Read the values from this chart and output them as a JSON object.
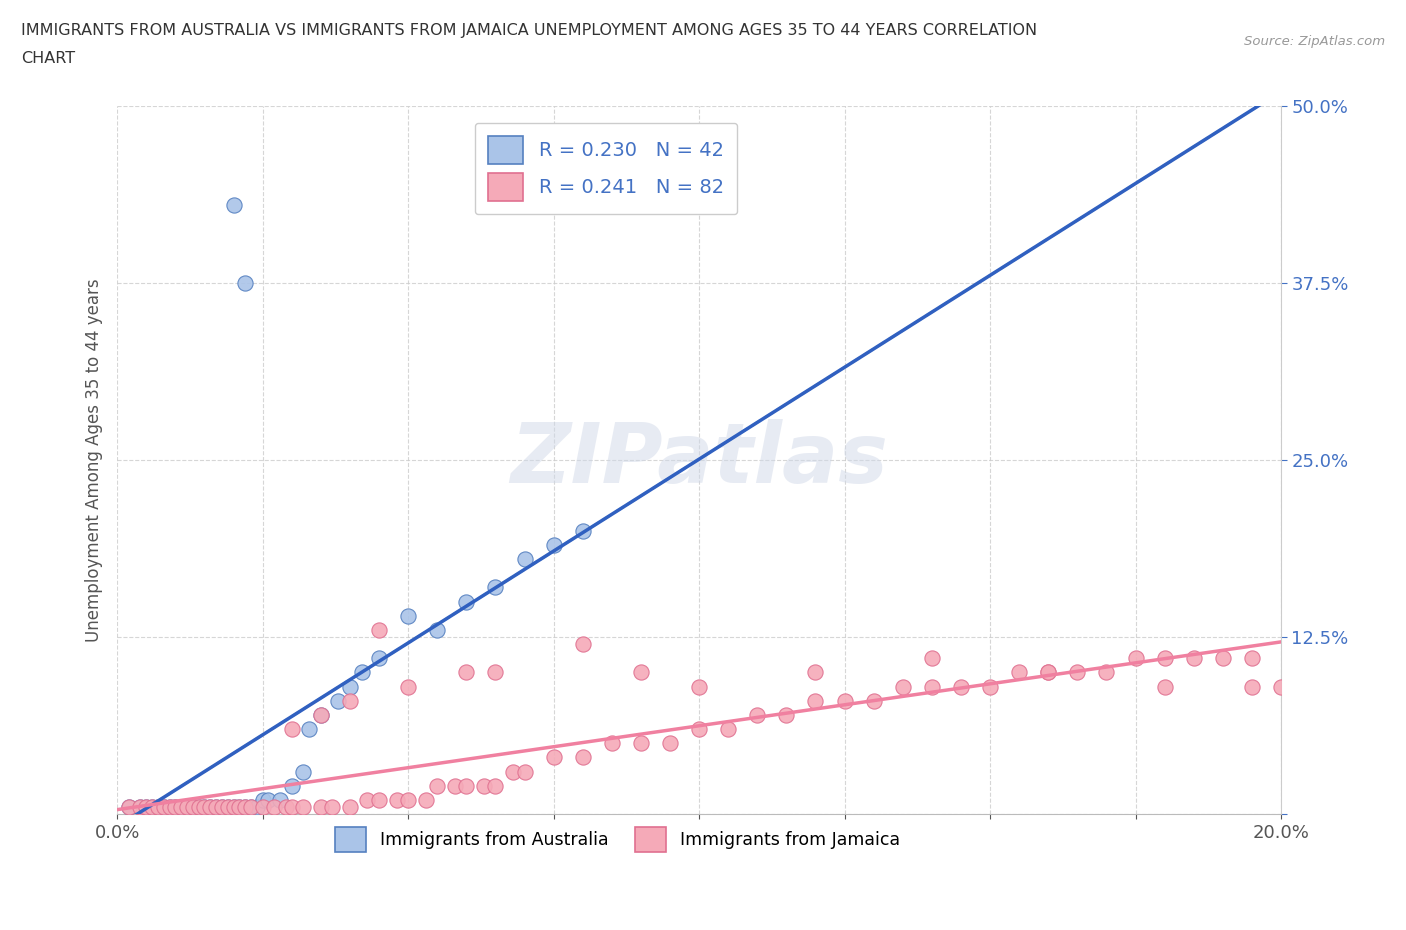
{
  "title_line1": "IMMIGRANTS FROM AUSTRALIA VS IMMIGRANTS FROM JAMAICA UNEMPLOYMENT AMONG AGES 35 TO 44 YEARS CORRELATION",
  "title_line2": "CHART",
  "source": "Source: ZipAtlas.com",
  "ylabel": "Unemployment Among Ages 35 to 44 years",
  "xlim": [
    0.0,
    0.2
  ],
  "ylim": [
    0.0,
    0.5
  ],
  "xtick_positions": [
    0.0,
    0.025,
    0.05,
    0.075,
    0.1,
    0.125,
    0.15,
    0.175,
    0.2
  ],
  "xtick_labels": [
    "0.0%",
    "",
    "",
    "",
    "",
    "",
    "",
    "",
    "20.0%"
  ],
  "ytick_positions": [
    0.0,
    0.125,
    0.25,
    0.375,
    0.5
  ],
  "ytick_labels": [
    "",
    "12.5%",
    "25.0%",
    "37.5%",
    "50.0%"
  ],
  "australia_color": "#aac4e8",
  "jamaica_color": "#f5aab8",
  "australia_edge_color": "#5580c0",
  "jamaica_edge_color": "#e07090",
  "trend_aus_color": "#3060c0",
  "trend_jam_color": "#f080a0",
  "dashed_aus_color": "#90b8e0",
  "R_australia": 0.23,
  "N_australia": 42,
  "R_jamaica": 0.241,
  "N_jamaica": 82,
  "watermark": "ZIPatlas",
  "legend_R_N_color": "#4472c4",
  "aus_legend_label": "Immigrants from Australia",
  "jam_legend_label": "Immigrants from Jamaica",
  "aus_x": [
    0.002,
    0.004,
    0.005,
    0.006,
    0.007,
    0.008,
    0.009,
    0.01,
    0.011,
    0.012,
    0.013,
    0.014,
    0.015,
    0.016,
    0.017,
    0.018,
    0.019,
    0.02,
    0.021,
    0.022,
    0.023,
    0.024,
    0.025,
    0.026,
    0.028,
    0.03,
    0.032,
    0.033,
    0.035,
    0.038,
    0.04,
    0.042,
    0.045,
    0.05,
    0.055,
    0.06,
    0.065,
    0.07,
    0.075,
    0.08,
    0.02,
    0.022
  ],
  "aus_y": [
    0.005,
    0.005,
    0.005,
    0.005,
    0.005,
    0.005,
    0.005,
    0.005,
    0.005,
    0.005,
    0.005,
    0.005,
    0.005,
    0.005,
    0.005,
    0.005,
    0.005,
    0.005,
    0.005,
    0.005,
    0.005,
    0.005,
    0.01,
    0.01,
    0.01,
    0.02,
    0.03,
    0.06,
    0.07,
    0.08,
    0.09,
    0.1,
    0.11,
    0.14,
    0.13,
    0.15,
    0.16,
    0.18,
    0.19,
    0.2,
    0.43,
    0.375
  ],
  "jam_x": [
    0.002,
    0.004,
    0.005,
    0.006,
    0.007,
    0.008,
    0.009,
    0.01,
    0.011,
    0.012,
    0.013,
    0.014,
    0.015,
    0.016,
    0.017,
    0.018,
    0.019,
    0.02,
    0.021,
    0.022,
    0.023,
    0.025,
    0.027,
    0.029,
    0.03,
    0.032,
    0.035,
    0.037,
    0.04,
    0.043,
    0.045,
    0.048,
    0.05,
    0.053,
    0.055,
    0.058,
    0.06,
    0.063,
    0.065,
    0.068,
    0.07,
    0.075,
    0.08,
    0.085,
    0.09,
    0.095,
    0.1,
    0.105,
    0.11,
    0.115,
    0.12,
    0.125,
    0.13,
    0.135,
    0.14,
    0.145,
    0.15,
    0.155,
    0.16,
    0.165,
    0.17,
    0.175,
    0.18,
    0.185,
    0.19,
    0.195,
    0.2,
    0.03,
    0.04,
    0.06,
    0.035,
    0.05,
    0.065,
    0.08,
    0.09,
    0.1,
    0.12,
    0.14,
    0.16,
    0.18,
    0.195,
    0.045
  ],
  "jam_y": [
    0.005,
    0.005,
    0.005,
    0.005,
    0.005,
    0.005,
    0.005,
    0.005,
    0.005,
    0.005,
    0.005,
    0.005,
    0.005,
    0.005,
    0.005,
    0.005,
    0.005,
    0.005,
    0.005,
    0.005,
    0.005,
    0.005,
    0.005,
    0.005,
    0.005,
    0.005,
    0.005,
    0.005,
    0.005,
    0.01,
    0.01,
    0.01,
    0.01,
    0.01,
    0.02,
    0.02,
    0.02,
    0.02,
    0.02,
    0.03,
    0.03,
    0.04,
    0.04,
    0.05,
    0.05,
    0.05,
    0.06,
    0.06,
    0.07,
    0.07,
    0.08,
    0.08,
    0.08,
    0.09,
    0.09,
    0.09,
    0.09,
    0.1,
    0.1,
    0.1,
    0.1,
    0.11,
    0.11,
    0.11,
    0.11,
    0.11,
    0.09,
    0.06,
    0.08,
    0.1,
    0.07,
    0.09,
    0.1,
    0.12,
    0.1,
    0.09,
    0.1,
    0.11,
    0.1,
    0.09,
    0.09,
    0.13
  ]
}
